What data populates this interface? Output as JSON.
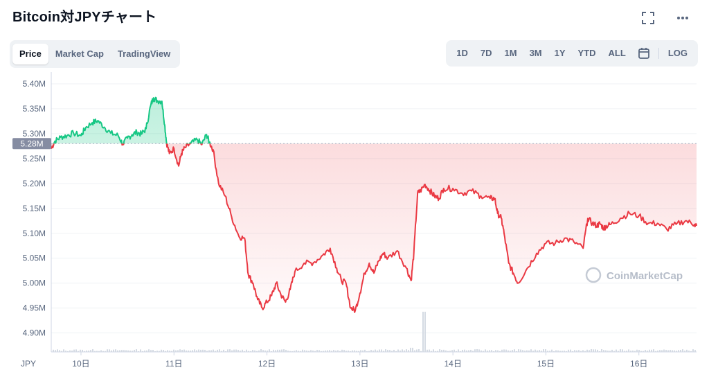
{
  "header": {
    "title": "Bitcoin対JPYチャート",
    "icons": [
      "expand-icon",
      "more-icon"
    ]
  },
  "tabs": [
    {
      "label": "Price",
      "active": true
    },
    {
      "label": "Market Cap",
      "active": false
    },
    {
      "label": "TradingView",
      "active": false
    }
  ],
  "ranges": [
    "1D",
    "7D",
    "1M",
    "3M",
    "1Y",
    "YTD",
    "ALL"
  ],
  "log_label": "LOG",
  "currency_label": "JPY",
  "watermark": "CoinMarketCap",
  "colors": {
    "up": "#16c784",
    "down": "#ea3943",
    "grid": "#eff2f5",
    "reference_tag": "#858ca2"
  },
  "chart_data": {
    "type": "line",
    "title": "Bitcoin対JPYチャート",
    "xlabel": "",
    "ylabel": "",
    "reference_value": 5.28,
    "reference_label": "5.28M",
    "y_ticks": [
      {
        "v": 4.9,
        "label": "4.90M"
      },
      {
        "v": 4.95,
        "label": "4.95M"
      },
      {
        "v": 5.0,
        "label": "5.00M"
      },
      {
        "v": 5.05,
        "label": "5.05M"
      },
      {
        "v": 5.1,
        "label": "5.10M"
      },
      {
        "v": 5.15,
        "label": "5.15M"
      },
      {
        "v": 5.2,
        "label": "5.20M"
      },
      {
        "v": 5.25,
        "label": "5.25M"
      },
      {
        "v": 5.3,
        "label": "5.30M"
      },
      {
        "v": 5.35,
        "label": "5.35M"
      },
      {
        "v": 5.4,
        "label": "5.40M"
      }
    ],
    "x_ticks": [
      {
        "v": 10,
        "label": "10日"
      },
      {
        "v": 11,
        "label": "11日"
      },
      {
        "v": 12,
        "label": "12日"
      },
      {
        "v": 13,
        "label": "13日"
      },
      {
        "v": 14,
        "label": "14日"
      },
      {
        "v": 15,
        "label": "15日"
      },
      {
        "v": 16,
        "label": "16日"
      }
    ],
    "xlim": [
      9.68,
      16.62
    ],
    "ylim": [
      4.862,
      5.418
    ],
    "series": [
      {
        "x": [
          9.68,
          9.72,
          9.78,
          9.85,
          9.92,
          10.0,
          10.05,
          10.12,
          10.18,
          10.25,
          10.32,
          10.4,
          10.45,
          10.5,
          10.55,
          10.6,
          10.65,
          10.7,
          10.75,
          10.78,
          10.82,
          10.87,
          10.9,
          10.92,
          10.95,
          11.0,
          11.05,
          11.08,
          11.12,
          11.18,
          11.25,
          11.3,
          11.35,
          11.38,
          11.42,
          11.48,
          11.55,
          11.62,
          11.7,
          11.76,
          11.8,
          11.85,
          11.9,
          11.95,
          12.0,
          12.05,
          12.1,
          12.15,
          12.2,
          12.25,
          12.3,
          12.4,
          12.5,
          12.6,
          12.68,
          12.75,
          12.8,
          12.85,
          12.9,
          12.95,
          13.0,
          13.05,
          13.1,
          13.15,
          13.2,
          13.25,
          13.3,
          13.4,
          13.5,
          13.55,
          13.58,
          13.62,
          13.65,
          13.7,
          13.75,
          13.8,
          13.85,
          13.9,
          14.0,
          14.1,
          14.2,
          14.3,
          14.4,
          14.45,
          14.48,
          14.52,
          14.55,
          14.6,
          14.65,
          14.7,
          14.8,
          14.9,
          15.0,
          15.1,
          15.2,
          15.3,
          15.4,
          15.45,
          15.5,
          15.55,
          15.58,
          15.62,
          15.65,
          15.7,
          15.8,
          15.9,
          16.0,
          16.1,
          16.2,
          16.3,
          16.4,
          16.5,
          16.6,
          16.62
        ],
        "y": [
          5.27,
          5.285,
          5.293,
          5.296,
          5.301,
          5.296,
          5.312,
          5.322,
          5.326,
          5.313,
          5.301,
          5.296,
          5.279,
          5.291,
          5.298,
          5.303,
          5.299,
          5.31,
          5.357,
          5.372,
          5.366,
          5.365,
          5.318,
          5.282,
          5.26,
          5.27,
          5.235,
          5.26,
          5.272,
          5.28,
          5.288,
          5.278,
          5.298,
          5.283,
          5.268,
          5.2,
          5.175,
          5.133,
          5.093,
          5.09,
          5.017,
          5.0,
          4.967,
          4.95,
          4.962,
          4.975,
          5.0,
          4.977,
          4.962,
          4.987,
          5.023,
          5.04,
          5.041,
          5.056,
          5.07,
          5.03,
          5.005,
          5.0,
          4.95,
          4.945,
          4.98,
          5.02,
          5.04,
          5.02,
          5.044,
          5.06,
          5.05,
          5.065,
          5.03,
          5.005,
          5.06,
          5.18,
          5.185,
          5.198,
          5.186,
          5.175,
          5.17,
          5.19,
          5.19,
          5.18,
          5.185,
          5.175,
          5.17,
          5.17,
          5.14,
          5.13,
          5.1,
          5.04,
          5.02,
          5.0,
          5.03,
          5.06,
          5.08,
          5.08,
          5.09,
          5.083,
          5.07,
          5.13,
          5.12,
          5.115,
          5.12,
          5.11,
          5.115,
          5.118,
          5.13,
          5.14,
          5.135,
          5.12,
          5.12,
          5.108,
          5.118,
          5.125,
          5.118,
          5.115
        ]
      }
    ]
  }
}
